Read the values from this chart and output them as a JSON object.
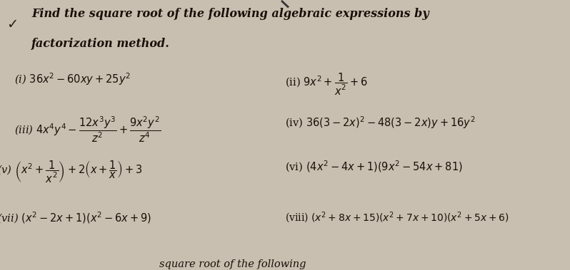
{
  "bg_color": "#c8bfb0",
  "title_line1": "Find the square root of the following algebraic expressions by",
  "title_line2": "factorization method.",
  "text_color": "#1a1008",
  "title_fontsize": 11.5,
  "item_fontsize": 10.5,
  "checkmark": "✓",
  "items": {
    "i_text": "(i) $36x^2-60xy+25y^2$",
    "ii_text": "(ii) $9x^2+\\dfrac{1}{x^2}+6$",
    "iii_text": "(iii) $4x^4y^4-\\dfrac{12x^3y^3}{z^2}+\\dfrac{9x^2y^2}{z^4}$",
    "iv_text": "(iv) $36(3-2x)^2-48(3-2x)y+16y^2$",
    "v_text": "$\\left(x^2+\\dfrac{1}{x^2}\\right)+2\\left(x+\\dfrac{1}{x}\\right)+3$",
    "vi_text": "(vi) $(4x^2-4x+1)(9x^2-54x+81)$",
    "vii_text": "(vii) $(x^2-2x+1)(x^2-6x+9)$",
    "viii_text": "(viii) $(x^2+8x+15)(x^2+7x+10)(x^2+5x+6)$"
  },
  "bottom_text": "square root of the following"
}
